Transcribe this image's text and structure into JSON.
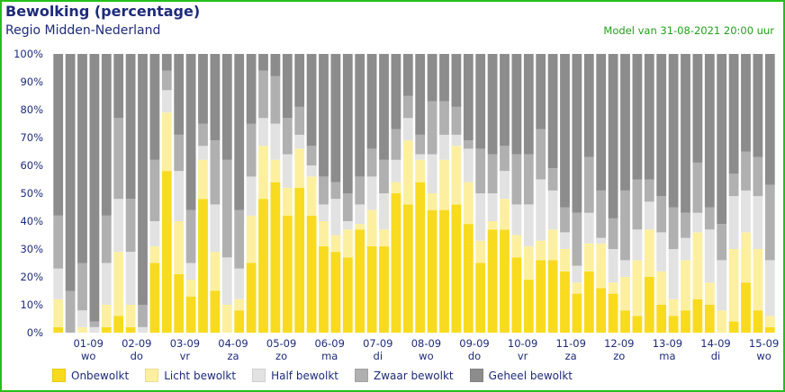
{
  "header": {
    "title": "Bewolking (percentage)",
    "subtitle": "Regio Midden-Nederland",
    "model": "Model van 31-08-2021 20:00 uur"
  },
  "chart_data": {
    "type": "bar",
    "stacked": true,
    "title": "Bewolking (percentage)",
    "ylim": [
      0,
      100
    ],
    "yticks": [
      "0%",
      "10%",
      "20%",
      "30%",
      "40%",
      "50%",
      "60%",
      "70%",
      "80%",
      "90%",
      "100%"
    ],
    "bars_per_day": 4,
    "days": [
      {
        "date": "01-09",
        "weekday": "wo"
      },
      {
        "date": "02-09",
        "weekday": "do"
      },
      {
        "date": "03-09",
        "weekday": "vr"
      },
      {
        "date": "04-09",
        "weekday": "za"
      },
      {
        "date": "05-09",
        "weekday": "zo"
      },
      {
        "date": "06-09",
        "weekday": "ma"
      },
      {
        "date": "07-09",
        "weekday": "di"
      },
      {
        "date": "08-09",
        "weekday": "wo"
      },
      {
        "date": "09-09",
        "weekday": "do"
      },
      {
        "date": "10-09",
        "weekday": "vr"
      },
      {
        "date": "11-09",
        "weekday": "za"
      },
      {
        "date": "12-09",
        "weekday": "zo"
      },
      {
        "date": "13-09",
        "weekday": "ma"
      },
      {
        "date": "14-09",
        "weekday": "di"
      },
      {
        "date": "15-09",
        "weekday": "wo"
      }
    ],
    "legend_position": "bottom",
    "series": [
      {
        "name": "Onbewolkt",
        "color": "#f8db1e",
        "values": [
          2,
          0,
          0,
          0,
          2,
          6,
          2,
          0,
          25,
          58,
          21,
          13,
          48,
          15,
          0,
          8,
          25,
          48,
          54,
          42,
          52,
          42,
          31,
          29,
          27,
          37,
          31,
          31,
          50,
          46,
          54,
          44,
          44,
          46,
          39,
          25,
          37,
          37,
          27,
          19,
          26,
          26,
          22,
          14,
          22,
          16,
          14,
          8,
          6,
          20,
          10,
          6,
          8,
          12,
          10,
          0,
          4,
          18,
          8,
          2
        ]
      },
      {
        "name": "Licht bewolkt",
        "color": "#fcf0a0",
        "values": [
          10,
          0,
          2,
          0,
          8,
          23,
          8,
          0,
          6,
          21,
          19,
          6,
          14,
          14,
          10,
          4,
          17,
          19,
          8,
          10,
          14,
          14,
          9,
          6,
          10,
          2,
          13,
          6,
          4,
          23,
          8,
          6,
          18,
          21,
          15,
          8,
          3,
          11,
          8,
          12,
          7,
          11,
          8,
          4,
          10,
          16,
          4,
          12,
          20,
          17,
          12,
          6,
          18,
          24,
          8,
          8,
          26,
          18,
          22,
          4
        ]
      },
      {
        "name": "Half bewolkt",
        "color": "#e2e2e2",
        "values": [
          11,
          0,
          6,
          2,
          15,
          19,
          19,
          2,
          9,
          8,
          18,
          6,
          5,
          17,
          17,
          11,
          14,
          10,
          13,
          12,
          5,
          4,
          6,
          13,
          3,
          7,
          12,
          13,
          8,
          8,
          2,
          14,
          9,
          4,
          12,
          17,
          10,
          10,
          11,
          15,
          22,
          14,
          6,
          6,
          11,
          2,
          12,
          6,
          11,
          10,
          14,
          18,
          8,
          7,
          19,
          18,
          19,
          15,
          19,
          20
        ]
      },
      {
        "name": "Zwaar bewolkt",
        "color": "#b0b0b0",
        "values": [
          19,
          15,
          17,
          2,
          17,
          29,
          19,
          8,
          22,
          7,
          13,
          19,
          8,
          23,
          35,
          21,
          19,
          17,
          17,
          13,
          10,
          7,
          10,
          6,
          10,
          10,
          10,
          12,
          11,
          8,
          7,
          19,
          12,
          10,
          3,
          16,
          14,
          9,
          18,
          18,
          18,
          8,
          9,
          19,
          20,
          17,
          11,
          25,
          18,
          8,
          13,
          15,
          9,
          18,
          8,
          13,
          8,
          14,
          14,
          27
        ]
      },
      {
        "name": "Geheel bewolkt",
        "color": "#8c8c8c",
        "values": [
          58,
          85,
          75,
          96,
          58,
          23,
          52,
          90,
          38,
          6,
          29,
          56,
          25,
          31,
          38,
          56,
          25,
          6,
          8,
          23,
          19,
          33,
          44,
          46,
          50,
          44,
          34,
          38,
          27,
          15,
          29,
          17,
          17,
          19,
          31,
          34,
          36,
          33,
          36,
          36,
          27,
          41,
          55,
          57,
          37,
          49,
          59,
          49,
          45,
          45,
          51,
          55,
          57,
          39,
          55,
          61,
          43,
          35,
          37,
          47
        ]
      }
    ]
  }
}
